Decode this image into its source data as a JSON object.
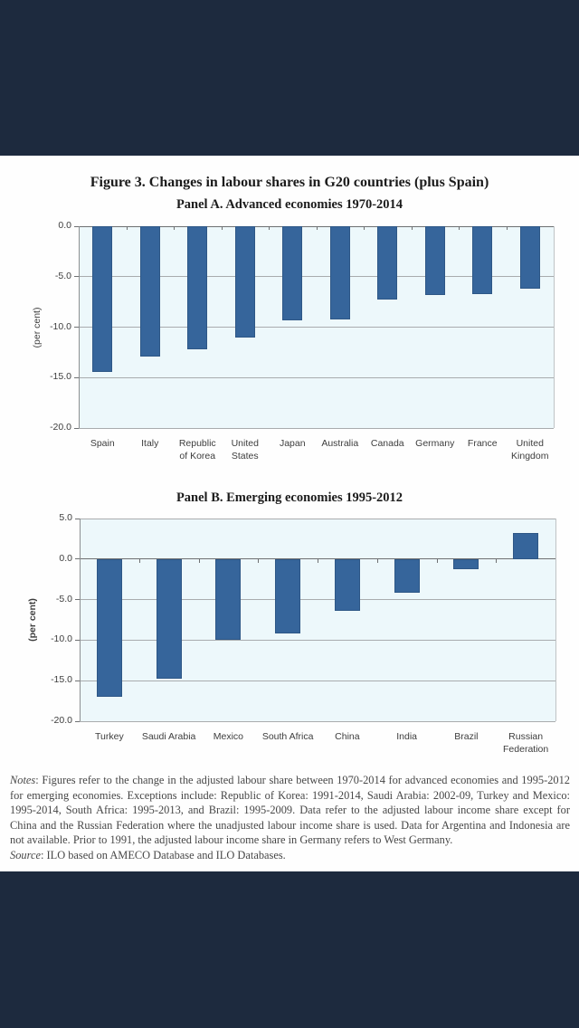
{
  "page": {
    "figure_title": "Figure 3. Changes in labour shares in G20 countries (plus Spain)",
    "notes_label": "Notes",
    "notes_body": ": Figures refer to the change in the adjusted labour share between 1970-2014 for advanced economies and 1995-2012 for emerging economies. Exceptions include: Republic of Korea: 1991-2014, Saudi Arabia: 2002-09, Turkey and Mexico: 1995-2014, South Africa: 1995-2013, and Brazil: 1995-2009. Data refer to the adjusted labour income share except for China and the Russian Federation where the unadjusted labour income share is used.  Data for Argentina and Indonesia are not available. Prior to 1991, the adjusted labour income share in Germany refers to West Germany.",
    "source_label": "Source",
    "source_body": ": ILO based on AMECO Database and ILO Databases."
  },
  "colors": {
    "letterbox_navy": "#1d2a3e",
    "bar_blue": "#36659b",
    "plot_background": "#edf8fb",
    "gridline_gray": "#a9acae",
    "axis_gray": "#6e7072"
  },
  "chart_data": [
    {
      "type": "bar",
      "title": "Panel A. Advanced economies 1970-2014",
      "ylabel": "(per cent)",
      "xlabel": "",
      "ylim": [
        -20,
        0
      ],
      "grid": true,
      "legend": "none",
      "yticks": [
        0,
        -5,
        -10,
        -15,
        -20
      ],
      "ytick_labels": [
        "0.0",
        "-5.0",
        "-10.0",
        "-15.0",
        "-20.0"
      ],
      "categories": [
        "Spain",
        "Italy",
        "Republic\nof Korea",
        "United\nStates",
        "Japan",
        "Australia",
        "Canada",
        "Germany",
        "France",
        "United\nKingdom"
      ],
      "values": [
        -14.4,
        -12.9,
        -12.2,
        -11.0,
        -9.3,
        -9.2,
        -7.3,
        -6.8,
        -6.7,
        -6.2
      ]
    },
    {
      "type": "bar",
      "title": "Panel B. Emerging economies 1995-2012",
      "ylabel": "(per cent)",
      "xlabel": "",
      "ylim": [
        -20,
        5
      ],
      "grid": true,
      "legend": "none",
      "yticks": [
        5,
        0,
        -5,
        -10,
        -15,
        -20
      ],
      "ytick_labels": [
        "5.0",
        "0.0",
        "-5.0",
        "-10.0",
        "-15.0",
        "-20.0"
      ],
      "categories": [
        "Turkey",
        "Saudi Arabia",
        "Mexico",
        "South Africa",
        "China",
        "India",
        "Brazil",
        "Russian\nFederation"
      ],
      "values": [
        -17.0,
        -14.7,
        -10.0,
        -9.2,
        -6.4,
        -4.1,
        -1.2,
        3.2
      ]
    }
  ]
}
